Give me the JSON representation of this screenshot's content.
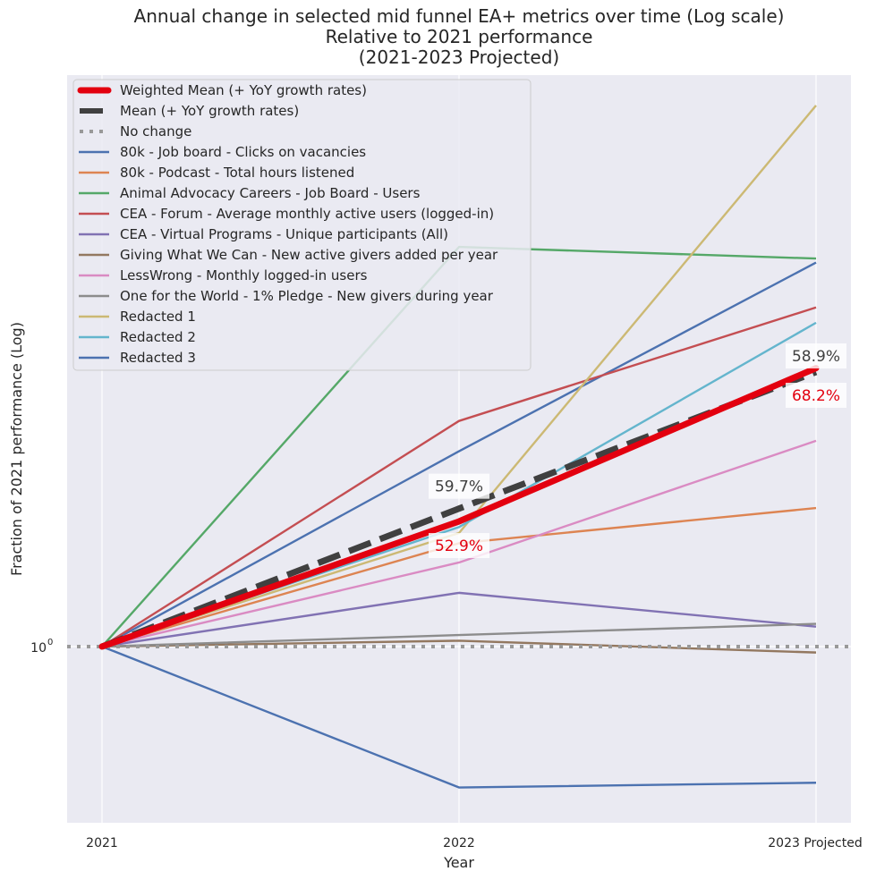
{
  "chart_data": {
    "type": "line",
    "title": [
      "Annual change in selected mid funnel EA+ metrics over time (Log scale)",
      "Relative to 2021 performance",
      "(2021-2023 Projected)"
    ],
    "xlabel": "Year",
    "ylabel": "Fraction of 2021 performance (Log)",
    "yscale": "log",
    "ylim": [
      0.55,
      6.95
    ],
    "yticks": [
      {
        "value": 1,
        "label_base": "10",
        "label_exp": "0"
      }
    ],
    "categories": [
      "2021",
      "2022",
      "2023 Projected"
    ],
    "grid": true,
    "legend_position": "upper-left",
    "series": [
      {
        "name": "Weighted Mean (+ YoY growth rates)",
        "color": "#e3000f",
        "style": "thick",
        "values": [
          1.0,
          1.529,
          2.572
        ]
      },
      {
        "name": "Mean (+ YoY growth rates)",
        "color": "#404040",
        "style": "dashed",
        "values": [
          1.0,
          1.597,
          2.538
        ]
      },
      {
        "name": "No change",
        "color": "#999999",
        "style": "dotted",
        "values": [
          1.0,
          1.0,
          1.0
        ],
        "extend_full_width": true
      },
      {
        "name": "80k - Job board - Clicks on vacancies",
        "color": "#4c72b0",
        "style": "solid",
        "values": [
          1.0,
          1.94,
          3.68
        ]
      },
      {
        "name": "80k - Podcast - Total hours listened",
        "color": "#dd8452",
        "style": "solid",
        "values": [
          1.0,
          1.42,
          1.6
        ]
      },
      {
        "name": "Animal Advocacy Careers - Job Board - Users",
        "color": "#55a868",
        "style": "solid",
        "values": [
          1.0,
          3.88,
          3.73
        ]
      },
      {
        "name": "CEA - Forum - Average monthly active users (logged-in)",
        "color": "#c44e52",
        "style": "solid",
        "values": [
          1.0,
          2.15,
          3.16
        ]
      },
      {
        "name": "CEA - Virtual Programs - Unique participants (All)",
        "color": "#8172b3",
        "style": "solid",
        "values": [
          1.0,
          1.2,
          1.07
        ]
      },
      {
        "name": "Giving What We Can - New active givers added per year",
        "color": "#937860",
        "style": "solid",
        "values": [
          1.0,
          1.02,
          0.98
        ]
      },
      {
        "name": "LessWrong - Monthly logged-in users",
        "color": "#da8bc3",
        "style": "solid",
        "values": [
          1.0,
          1.33,
          2.01
        ]
      },
      {
        "name": "One for the World - 1% Pledge - New givers during year",
        "color": "#8c8c8c",
        "style": "solid",
        "values": [
          1.0,
          1.04,
          1.08
        ]
      },
      {
        "name": "Redacted 1",
        "color": "#ccb974",
        "style": "solid",
        "values": [
          1.0,
          1.47,
          6.27
        ]
      },
      {
        "name": "Redacted 2",
        "color": "#64b5cd",
        "style": "solid",
        "values": [
          1.0,
          1.5,
          3.0
        ]
      },
      {
        "name": "Redacted 3",
        "color": "#4c72b0",
        "style": "solid",
        "values": [
          1.0,
          0.62,
          0.63
        ]
      }
    ],
    "annotations": [
      {
        "text": "59.7%",
        "series": "Mean (+ YoY growth rates)",
        "x_index": 1,
        "color": "#404040",
        "placement": "above"
      },
      {
        "text": "52.9%",
        "series": "Weighted Mean (+ YoY growth rates)",
        "x_index": 1,
        "color": "#e3000f",
        "placement": "below"
      },
      {
        "text": "58.9%",
        "series": "Mean (+ YoY growth rates)",
        "x_index": 2,
        "color": "#404040",
        "placement": "above"
      },
      {
        "text": "68.2%",
        "series": "Weighted Mean (+ YoY growth rates)",
        "x_index": 2,
        "color": "#e3000f",
        "placement": "below"
      }
    ],
    "background_color": "#eaeaf2",
    "grid_color": "#ffffff"
  }
}
